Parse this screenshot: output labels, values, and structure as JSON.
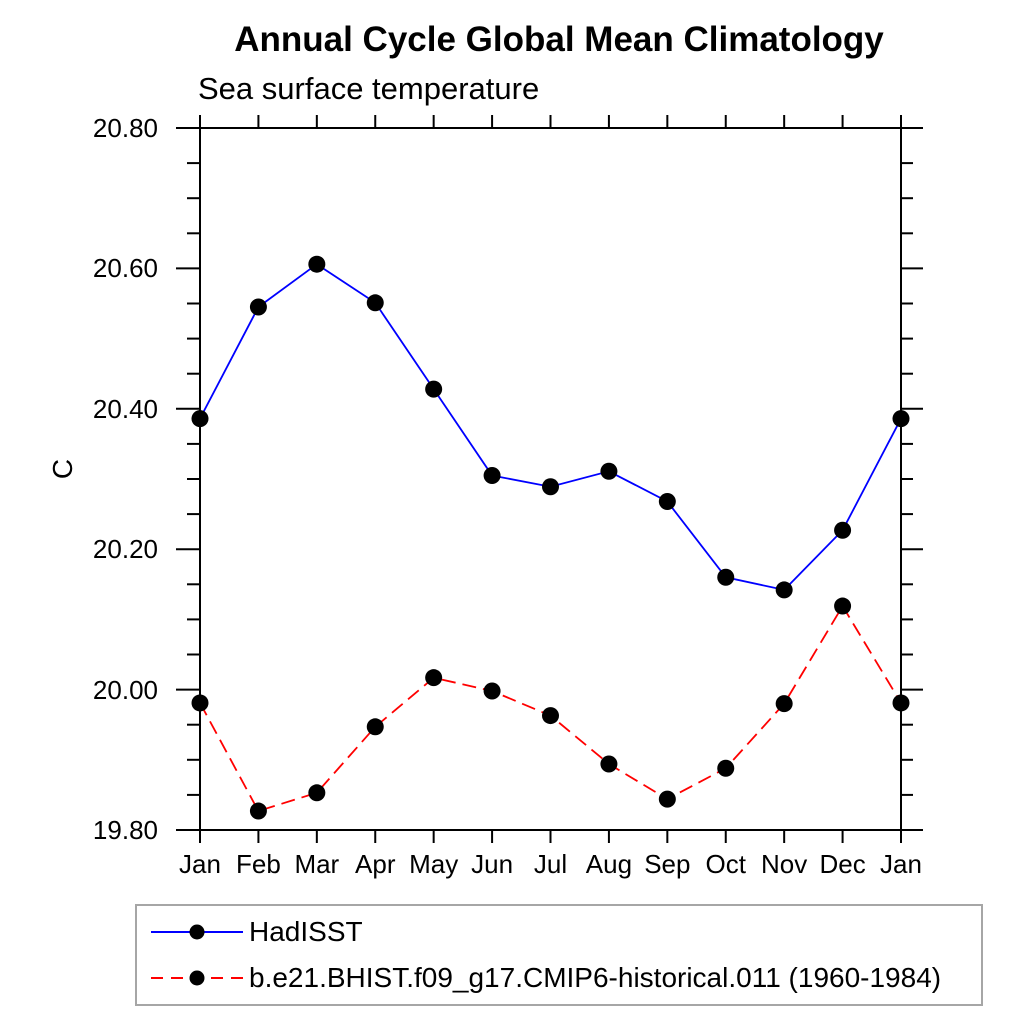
{
  "title": "Annual Cycle Global Mean Climatology",
  "subtitle": "Sea surface temperature",
  "y_axis": {
    "label": "C",
    "tick_labels": [
      "20.80",
      "20.60",
      "20.40",
      "20.20",
      "20.00",
      "19.80"
    ]
  },
  "x_axis": {
    "tick_labels": [
      "Jan",
      "Feb",
      "Mar",
      "Apr",
      "May",
      "Jun",
      "Jul",
      "Aug",
      "Sep",
      "Oct",
      "Nov",
      "Dec",
      "Jan"
    ]
  },
  "chart_data": {
    "type": "line",
    "title": "Annual Cycle Global Mean Climatology",
    "subtitle": "Sea surface temperature",
    "xlabel": "",
    "ylabel": "C",
    "categories": [
      "Jan",
      "Feb",
      "Mar",
      "Apr",
      "May",
      "Jun",
      "Jul",
      "Aug",
      "Sep",
      "Oct",
      "Nov",
      "Dec",
      "Jan"
    ],
    "series": [
      {
        "name": "HadISST",
        "color": "#0000ff",
        "line_style": "solid",
        "marker": "black-circle",
        "values": [
          20.386,
          20.545,
          20.606,
          20.551,
          20.428,
          20.305,
          20.289,
          20.311,
          20.268,
          20.16,
          20.142,
          20.227,
          20.386
        ]
      },
      {
        "name": "b.e21.BHIST.f09_g17.CMIP6-historical.011 (1960-1984)",
        "color": "#ff0000",
        "line_style": "dashed",
        "marker": "black-circle",
        "values": [
          19.981,
          19.827,
          19.853,
          19.947,
          20.017,
          19.998,
          19.963,
          19.894,
          19.844,
          19.888,
          19.98,
          20.119,
          19.981
        ]
      }
    ],
    "ylim": [
      19.8,
      20.8
    ],
    "ytick_major_step": 0.2,
    "ytick_minor_step": 0.05,
    "grid": false,
    "axis_color": "#000000",
    "marker_color": "#000000",
    "legend_position": "bottom-left"
  },
  "legend": {
    "border_color": "#a6a6a6",
    "entries": [
      {
        "label": "HadISST",
        "line_color": "#0000ff",
        "line_style": "solid",
        "marker_color": "#000000"
      },
      {
        "label": "b.e21.BHIST.f09_g17.CMIP6-historical.011 (1960-1984)",
        "line_color": "#ff0000",
        "line_style": "dashed",
        "marker_color": "#000000"
      }
    ]
  }
}
